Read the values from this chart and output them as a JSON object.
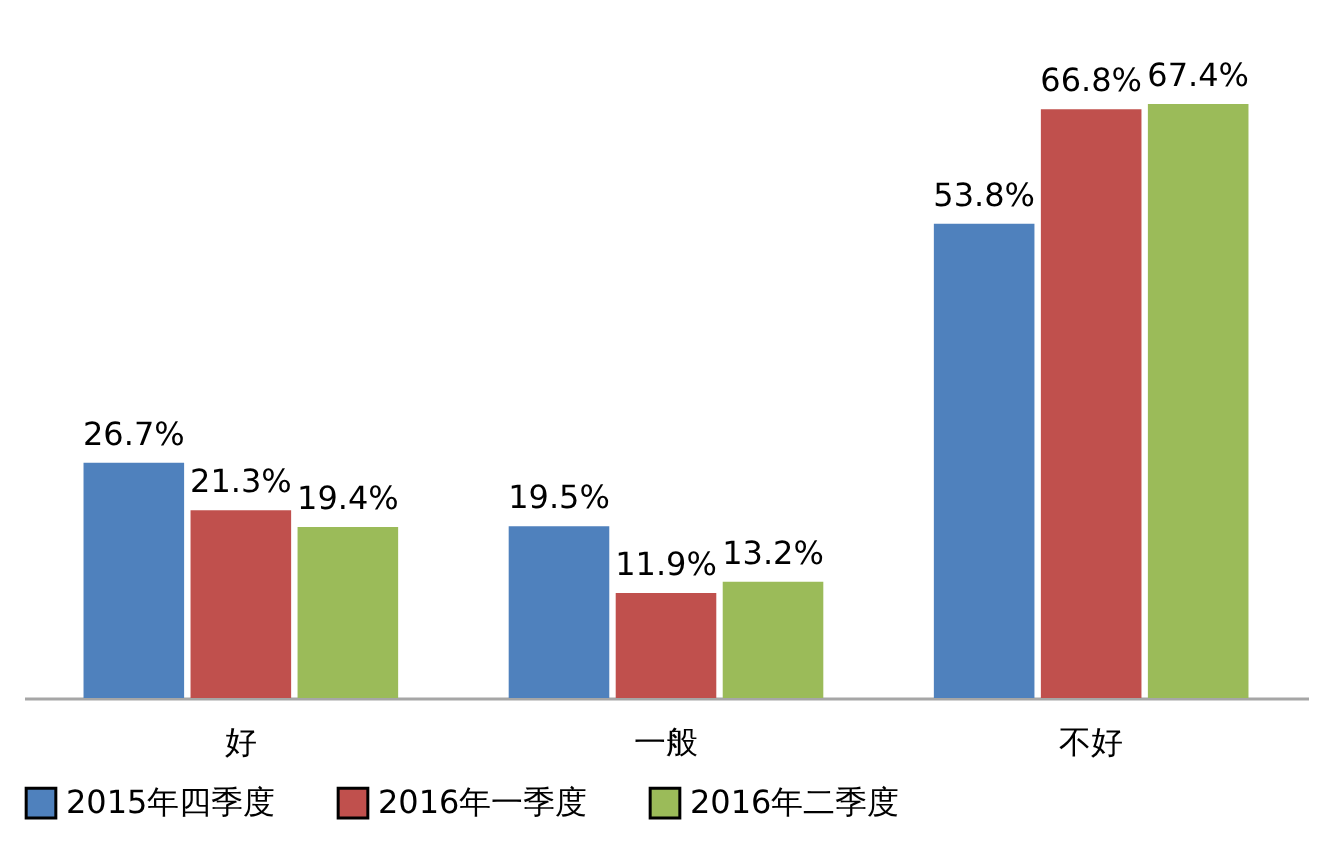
{
  "chart_data": {
    "type": "bar",
    "categories": [
      "好",
      "一般",
      "不好"
    ],
    "series": [
      {
        "name": "2015年四季度",
        "color": "#4f81bd",
        "values": [
          26.7,
          19.5,
          53.8
        ],
        "value_labels": [
          "26.7%",
          "19.5%",
          "53.8%"
        ]
      },
      {
        "name": "2016年一季度",
        "color": "#c0504d",
        "values": [
          21.3,
          11.9,
          66.8
        ],
        "value_labels": [
          "21.3%",
          "11.9%",
          "66.8%"
        ]
      },
      {
        "name": "2016年二季度",
        "color": "#9bbb59",
        "values": [
          19.4,
          13.2,
          67.4
        ],
        "value_labels": [
          "19.4%",
          "13.2%",
          "67.4%"
        ]
      }
    ],
    "legend": "bottom",
    "grid": false,
    "tick_labels": "x"
  }
}
